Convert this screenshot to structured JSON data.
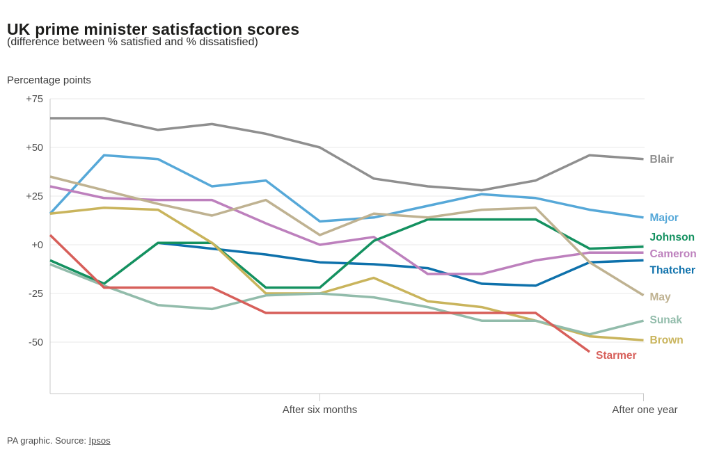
{
  "header": {
    "title": "UK prime minister satisfaction scores",
    "subtitle": "(difference between % satisfied and % dissatisfied)"
  },
  "chart_data": {
    "type": "line",
    "title": "UK prime minister satisfaction scores",
    "subtitle": "(difference between % satisfied and % dissatisfied)",
    "ylabel": "Percentage points",
    "xlabel": "",
    "x_unit": "months in office",
    "months": [
      1,
      2,
      3,
      4,
      5,
      6,
      7,
      8,
      9,
      10,
      11,
      12
    ],
    "x_tick_months": [
      6,
      12
    ],
    "x_tick_labels": [
      "After six months",
      "After one year"
    ],
    "yticks": [
      75,
      50,
      25,
      0,
      -25,
      -50
    ],
    "ytick_labels": [
      "+75",
      "+50",
      "+25",
      "+0",
      "-25",
      "-50"
    ],
    "ylim": [
      -76,
      75
    ],
    "grid": true,
    "legend_position": "right-of-line-ends",
    "axis_text_color": "#4d4d4d",
    "grid_color": "#e9e9e9",
    "spine_color": "#c9c9c9",
    "series": [
      {
        "name": "Blair",
        "color": "#8f8f8f",
        "label_dy": 0,
        "values": [
          65,
          65,
          59,
          62,
          57,
          50,
          34,
          30,
          28,
          33,
          46,
          44
        ]
      },
      {
        "name": "Major",
        "color": "#56a8d8",
        "label_dy": 0,
        "values": [
          16,
          46,
          44,
          30,
          33,
          12,
          14,
          20,
          26,
          24,
          18,
          14
        ]
      },
      {
        "name": "Thatcher",
        "color": "#0e71ab",
        "label_dy": 14,
        "values": [
          null,
          null,
          1,
          -2,
          -5,
          -9,
          -10,
          -12,
          -20,
          -21,
          -9,
          -8
        ]
      },
      {
        "name": "Cameron",
        "color": "#bd80bd",
        "label_dy": 2,
        "values": [
          30,
          24,
          23,
          23,
          11,
          0,
          4,
          -15,
          -15,
          -8,
          -4,
          -4
        ]
      },
      {
        "name": "Johnson",
        "color": "#149160",
        "label_dy": -14,
        "values": [
          -8,
          -20,
          1,
          1,
          -22,
          -22,
          2,
          13,
          13,
          13,
          -2,
          -1
        ]
      },
      {
        "name": "Brown",
        "color": "#c9b45c",
        "label_dy": 0,
        "values": [
          16,
          19,
          18,
          1,
          -25,
          -25,
          -17,
          -29,
          -32,
          -39,
          -47,
          -49
        ]
      },
      {
        "name": "Sunak",
        "color": "#92bcab",
        "label_dy": -1,
        "values": [
          -10,
          -21,
          -31,
          -33,
          -26,
          -25,
          -27,
          -32,
          -39,
          -39,
          -46,
          -39
        ]
      },
      {
        "name": "May",
        "color": "#bfb291",
        "label_dy": 2,
        "values": [
          35,
          28,
          21,
          15,
          23,
          5,
          16,
          14,
          18,
          19,
          -9,
          -26
        ]
      },
      {
        "name": "Starmer",
        "color": "#d75f5a",
        "label_dy": 5,
        "values": [
          5,
          -22,
          -22,
          -22,
          -35,
          -35,
          -35,
          -35,
          -35,
          -35,
          -55,
          null
        ]
      }
    ]
  },
  "footer": {
    "credit": "PA graphic. Source: ",
    "source_link": "Ipsos"
  }
}
